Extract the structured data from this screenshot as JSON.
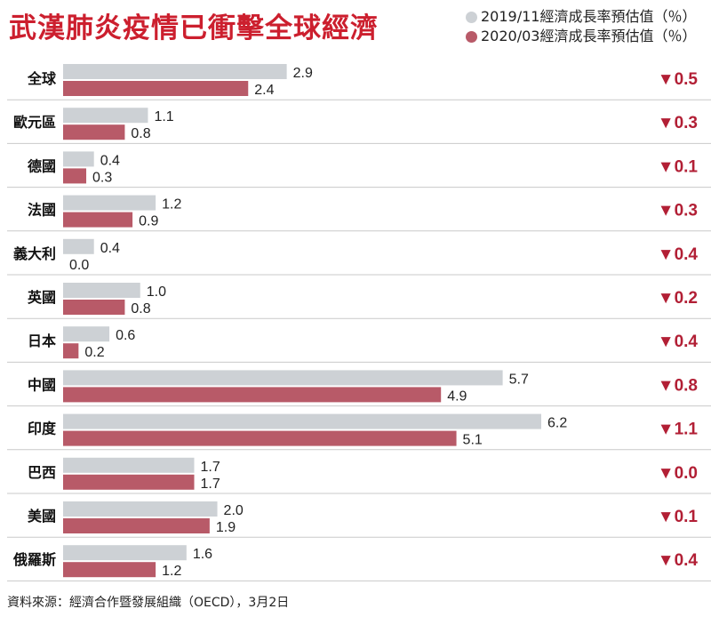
{
  "title": "武漢肺炎疫情已衝擊全球經濟",
  "legend": [
    {
      "label": "2019/11經濟成長率預估值（％）",
      "color": "#cdd1d5"
    },
    {
      "label": "2020/03經濟成長率預估值（％）",
      "color": "#b85a68"
    }
  ],
  "source": "資料來源：經濟合作暨發展組織（OECD），3月2日",
  "chart_data": {
    "type": "bar",
    "orientation": "horizontal",
    "title": "武漢肺炎疫情已衝擊全球經濟",
    "categories": [
      "全球",
      "歐元區",
      "德國",
      "法國",
      "義大利",
      "英國",
      "日本",
      "中國",
      "印度",
      "巴西",
      "美國",
      "俄羅斯"
    ],
    "series": [
      {
        "name": "2019/11經濟成長率預估值（％）",
        "color": "#cdd1d5",
        "values": [
          2.9,
          1.1,
          0.4,
          1.2,
          0.4,
          1.0,
          0.6,
          5.7,
          6.2,
          1.7,
          2.0,
          1.6
        ],
        "labels": [
          "2.9",
          "1.1",
          "0.4",
          "1.2",
          "0.4",
          "1.0",
          "0.6",
          "5.7",
          "6.2",
          "1.7",
          "2.0",
          "1.6"
        ]
      },
      {
        "name": "2020/03經濟成長率預估值（％）",
        "color": "#b85a68",
        "values": [
          2.4,
          0.8,
          0.3,
          0.9,
          0.0,
          0.8,
          0.2,
          4.9,
          5.1,
          1.7,
          1.9,
          1.2
        ],
        "labels": [
          "2.4",
          "0.8",
          "0.3",
          "0.9",
          "0.0",
          "0.8",
          "0.2",
          "4.9",
          "5.1",
          "1.7",
          "1.9",
          "1.2"
        ]
      }
    ],
    "changes": [
      "▼0.5",
      "▼0.3",
      "▼0.1",
      "▼0.3",
      "▼0.4",
      "▼0.2",
      "▼0.4",
      "▼0.8",
      "▼1.1",
      "▼0.0",
      "▼0.1",
      "▼0.4"
    ],
    "change_color": "#b21f35",
    "xlim": [
      0,
      6.2
    ]
  }
}
